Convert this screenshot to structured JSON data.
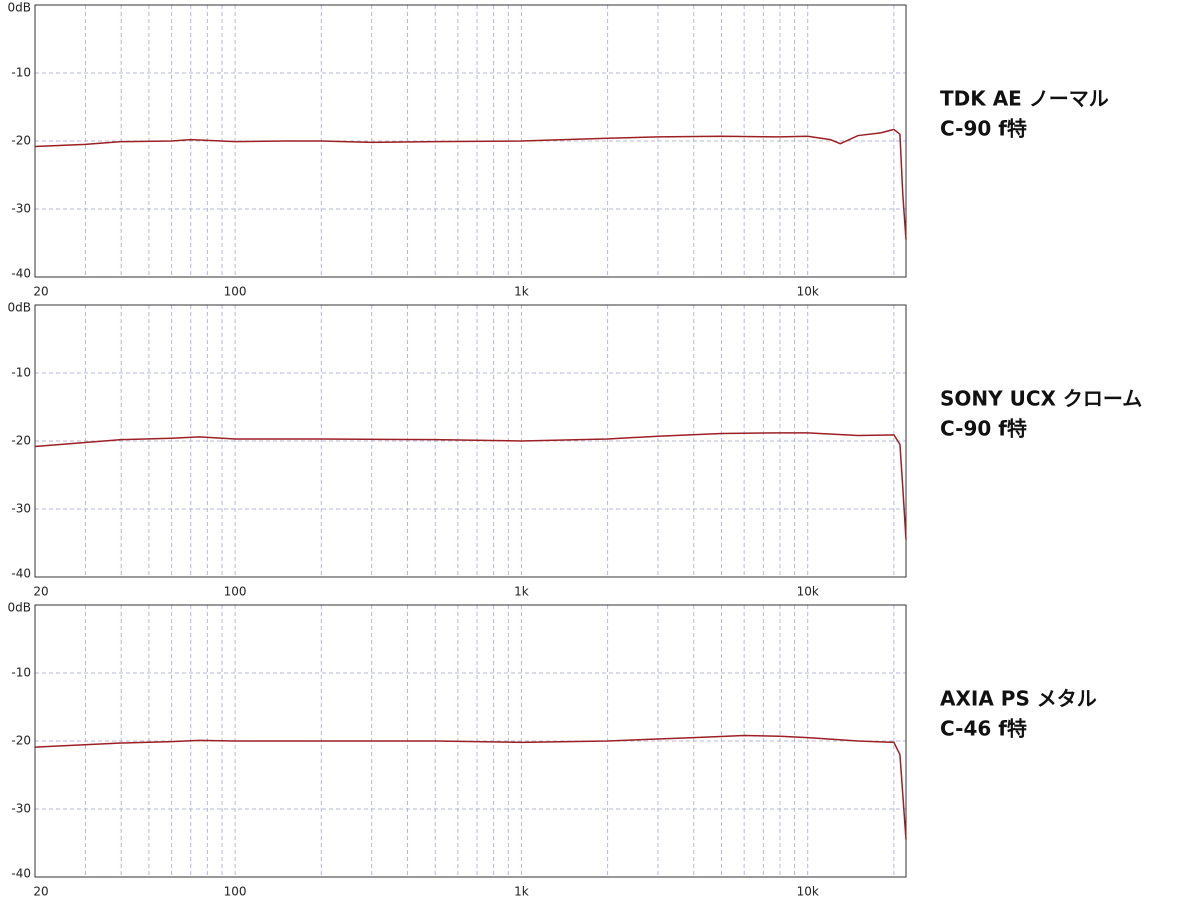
{
  "chart_data": [
    {
      "type": "line",
      "title": "TDK AE ノーマル",
      "subtitle": "C-90 f特",
      "x": [
        20,
        30,
        40,
        60,
        70,
        100,
        150,
        200,
        300,
        500,
        1000,
        2000,
        3000,
        5000,
        8000,
        10000,
        12000,
        13000,
        15000,
        18000,
        20000,
        21000,
        21500,
        22050
      ],
      "values": [
        -20.8,
        -20.5,
        -20.1,
        -20.0,
        -19.8,
        -20.1,
        -20.0,
        -20.0,
        -20.2,
        -20.1,
        -20.0,
        -19.6,
        -19.4,
        -19.3,
        -19.4,
        -19.3,
        -19.8,
        -20.4,
        -19.2,
        -18.8,
        -18.3,
        -19.0,
        -28.0,
        -34.5
      ],
      "color": "#9c1f24",
      "xscale": "log",
      "grid": true,
      "xlim": [
        20,
        22050
      ],
      "xticks": [
        20,
        100,
        {
          "value": 1000,
          "label": "1k"
        },
        {
          "value": 10000,
          "label": "10k"
        }
      ],
      "xminorticks": [
        30,
        40,
        50,
        60,
        70,
        80,
        90,
        200,
        300,
        400,
        500,
        600,
        700,
        800,
        900,
        2000,
        3000,
        4000,
        5000,
        6000,
        7000,
        8000,
        9000,
        20000
      ],
      "ylim": [
        -40,
        0
      ],
      "yticks": [
        {
          "value": 0,
          "label": "0dB"
        },
        -10,
        -20,
        -30,
        -40
      ]
    },
    {
      "type": "line",
      "title": "SONY UCX クローム",
      "subtitle": "C-90 f特",
      "x": [
        20,
        40,
        60,
        75,
        100,
        200,
        500,
        1000,
        2000,
        3000,
        5000,
        8000,
        10000,
        15000,
        20000,
        21000,
        21500,
        22050
      ],
      "values": [
        -20.8,
        -19.8,
        -19.6,
        -19.4,
        -19.7,
        -19.7,
        -19.8,
        -20.0,
        -19.7,
        -19.3,
        -18.9,
        -18.8,
        -18.8,
        -19.2,
        -19.1,
        -20.5,
        -27.0,
        -34.5
      ],
      "color": "#9c1f24",
      "xscale": "log",
      "grid": true,
      "xlim": [
        20,
        22050
      ],
      "xticks": [
        20,
        100,
        {
          "value": 1000,
          "label": "1k"
        },
        {
          "value": 10000,
          "label": "10k"
        }
      ],
      "xminorticks": [
        30,
        40,
        50,
        60,
        70,
        80,
        90,
        200,
        300,
        400,
        500,
        600,
        700,
        800,
        900,
        2000,
        3000,
        4000,
        5000,
        6000,
        7000,
        8000,
        9000,
        20000
      ],
      "ylim": [
        -40,
        0
      ],
      "yticks": [
        {
          "value": 0,
          "label": "0dB"
        },
        -10,
        -20,
        -30,
        -40
      ]
    },
    {
      "type": "line",
      "title": "AXIA PS メタル",
      "subtitle": "C-46 f特",
      "x": [
        20,
        40,
        60,
        75,
        100,
        300,
        500,
        1000,
        2000,
        4000,
        6000,
        8000,
        10000,
        15000,
        20000,
        21000,
        21500,
        22050
      ],
      "values": [
        -20.9,
        -20.3,
        -20.1,
        -19.9,
        -20.0,
        -20.0,
        -20.0,
        -20.2,
        -20.0,
        -19.5,
        -19.2,
        -19.3,
        -19.5,
        -20.0,
        -20.2,
        -22.0,
        -28.0,
        -34.5
      ],
      "color": "#9c1f24",
      "xscale": "log",
      "grid": true,
      "xlim": [
        20,
        22050
      ],
      "xticks": [
        20,
        100,
        {
          "value": 1000,
          "label": "1k"
        },
        {
          "value": 10000,
          "label": "10k"
        }
      ],
      "xminorticks": [
        30,
        40,
        50,
        60,
        70,
        80,
        90,
        200,
        300,
        400,
        500,
        600,
        700,
        800,
        900,
        2000,
        3000,
        4000,
        5000,
        6000,
        7000,
        8000,
        9000,
        20000
      ],
      "ylim": [
        -40,
        0
      ],
      "yticks": [
        {
          "value": 0,
          "label": "0dB"
        },
        -10,
        -20,
        -30,
        -40
      ]
    }
  ]
}
